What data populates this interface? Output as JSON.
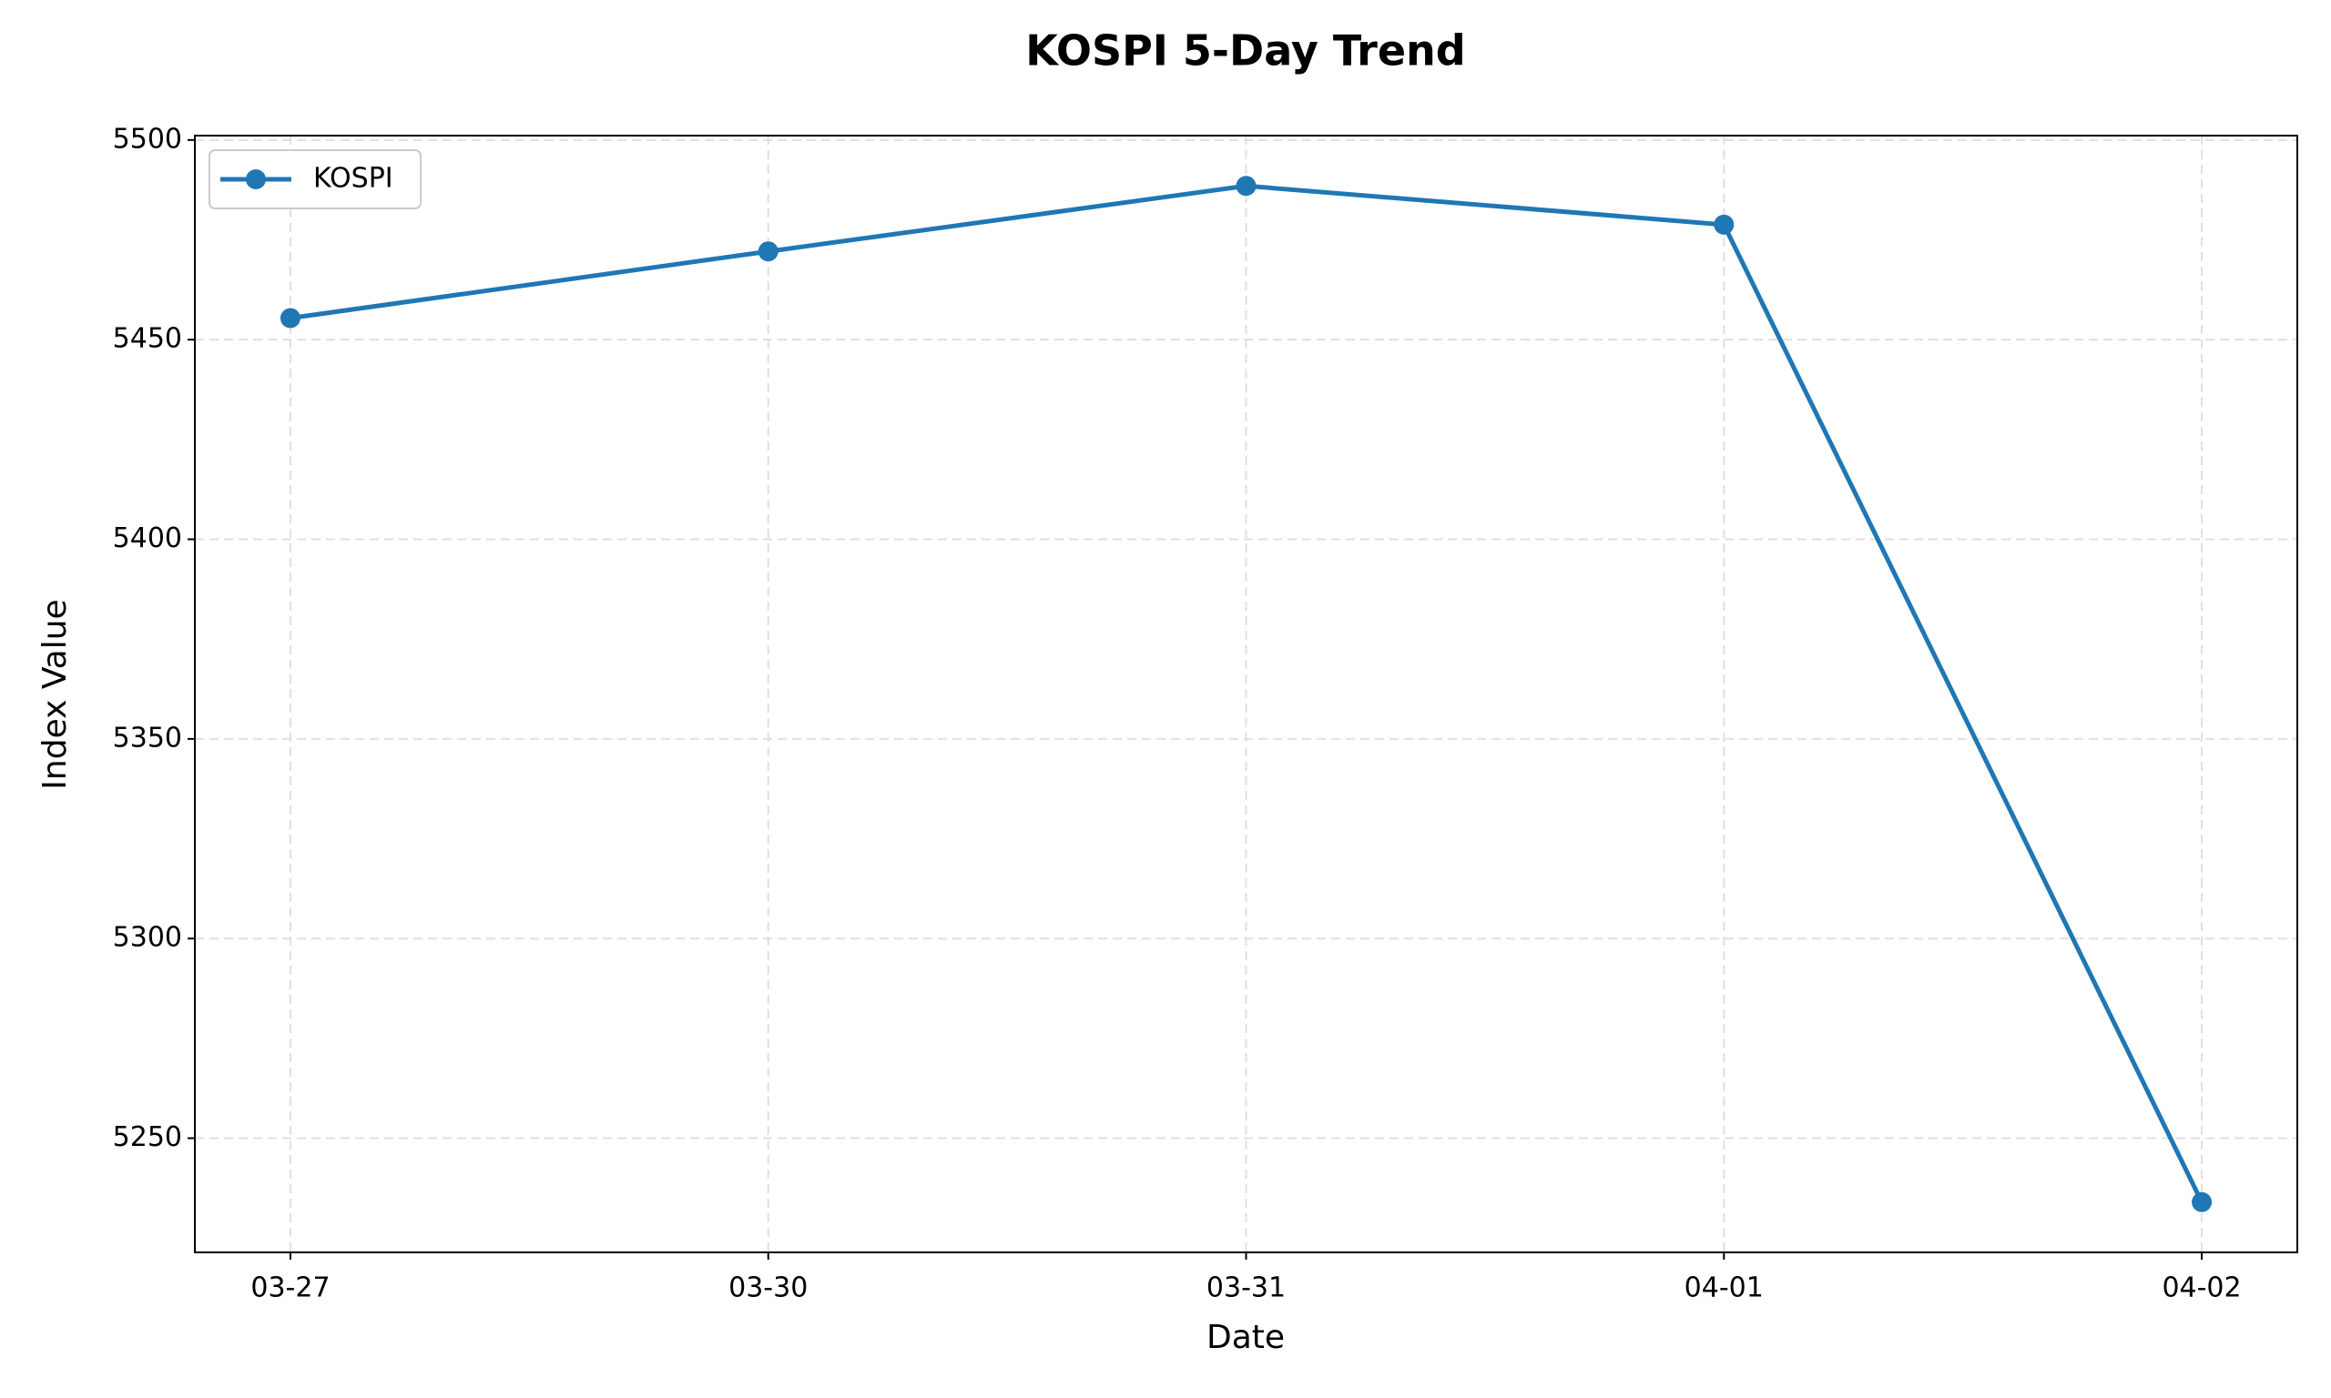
{
  "chart_data": {
    "type": "line",
    "title": "KOSPI 5-Day Trend",
    "x_label": "Date",
    "y_label": "Index Value",
    "categories": [
      "03-27",
      "03-30",
      "03-31",
      "04-01",
      "04-02"
    ],
    "series": [
      {
        "name": "KOSPI",
        "color": "#1f77b4",
        "values": [
          5455.4,
          5472.1,
          5488.5,
          5478.8,
          5234.0
        ]
      }
    ],
    "ylim": [
      5221.4,
      5501.1
    ],
    "yticks": [
      5250,
      5300,
      5350,
      5400,
      5450,
      5500
    ],
    "grid": true,
    "legend": "upper left"
  }
}
